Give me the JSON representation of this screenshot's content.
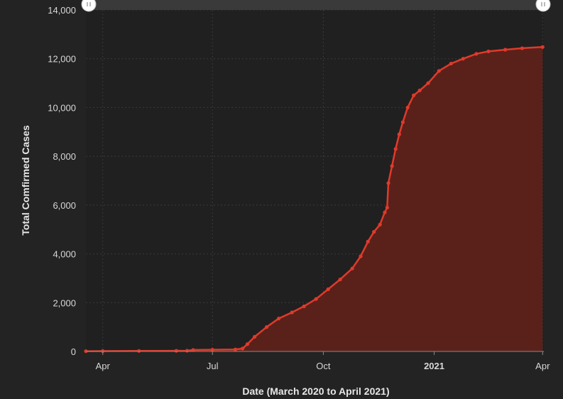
{
  "chart_data": {
    "type": "area",
    "title": "",
    "xlabel": "Date (March 2020 to April 2021)",
    "ylabel": "Total Comfirmed Cases",
    "ylim": [
      0,
      14000
    ],
    "yticks": [
      "0",
      "2,000",
      "4,000",
      "6,000",
      "8,000",
      "10,000",
      "12,000",
      "14,000"
    ],
    "xticks": [
      {
        "date": "2020-04-01",
        "label": "Apr",
        "bold": false
      },
      {
        "date": "2020-07-01",
        "label": "Jul",
        "bold": false
      },
      {
        "date": "2020-10-01",
        "label": "Oct",
        "bold": false
      },
      {
        "date": "2021-01-01",
        "label": "2021",
        "bold": true
      },
      {
        "date": "2021-04-01",
        "label": "Apr",
        "bold": false
      }
    ],
    "xlim": [
      "2020-03-18",
      "2021-04-02"
    ],
    "grid": true,
    "colors": {
      "line": "#e03a2a",
      "fill": "#5a211b",
      "plot_bg": "#202020",
      "slider_bar": "#3a3a3a"
    },
    "series": [
      {
        "points": [
          [
            "2020-03-18",
            10
          ],
          [
            "2020-04-01",
            15
          ],
          [
            "2020-05-01",
            20
          ],
          [
            "2020-06-01",
            25
          ],
          [
            "2020-06-10",
            30
          ],
          [
            "2020-06-15",
            60
          ],
          [
            "2020-07-01",
            70
          ],
          [
            "2020-07-20",
            80
          ],
          [
            "2020-07-26",
            120
          ],
          [
            "2020-07-30",
            300
          ],
          [
            "2020-08-05",
            600
          ],
          [
            "2020-08-15",
            1000
          ],
          [
            "2020-08-25",
            1350
          ],
          [
            "2020-09-05",
            1600
          ],
          [
            "2020-09-15",
            1850
          ],
          [
            "2020-09-25",
            2150
          ],
          [
            "2020-10-05",
            2550
          ],
          [
            "2020-10-15",
            2950
          ],
          [
            "2020-10-25",
            3400
          ],
          [
            "2020-11-01",
            3900
          ],
          [
            "2020-11-07",
            4500
          ],
          [
            "2020-11-12",
            4900
          ],
          [
            "2020-11-17",
            5200
          ],
          [
            "2020-11-21",
            5700
          ],
          [
            "2020-11-23",
            5900
          ],
          [
            "2020-11-24",
            6900
          ],
          [
            "2020-11-27",
            7600
          ],
          [
            "2020-11-30",
            8300
          ],
          [
            "2020-12-03",
            8900
          ],
          [
            "2020-12-06",
            9400
          ],
          [
            "2020-12-10",
            10000
          ],
          [
            "2020-12-15",
            10500
          ],
          [
            "2020-12-20",
            10700
          ],
          [
            "2020-12-27",
            11000
          ],
          [
            "2021-01-05",
            11500
          ],
          [
            "2021-01-15",
            11800
          ],
          [
            "2021-01-25",
            12000
          ],
          [
            "2021-02-05",
            12200
          ],
          [
            "2021-02-15",
            12300
          ],
          [
            "2021-03-01",
            12370
          ],
          [
            "2021-03-15",
            12430
          ],
          [
            "2021-04-01",
            12480
          ]
        ]
      }
    ]
  }
}
